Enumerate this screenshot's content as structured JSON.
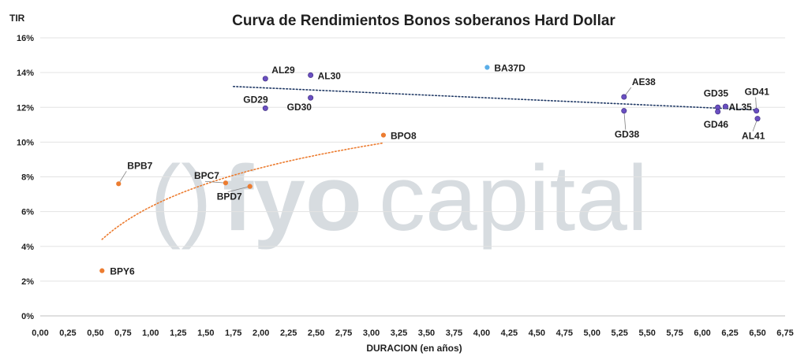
{
  "watermark": {
    "brand_bold": "fyo",
    "brand_light": "capital"
  },
  "chart_data": {
    "type": "scatter",
    "title": "Curva de Rendimientos Bonos soberanos Hard Dollar",
    "xlabel": "DURACION (en años)",
    "ylabel": "TIR",
    "xlim": [
      0,
      6.75
    ],
    "ylim": [
      0,
      16
    ],
    "x_ticks": [
      "0,00",
      "0,25",
      "0,50",
      "0,75",
      "1,00",
      "1,25",
      "1,50",
      "1,75",
      "2,00",
      "2,25",
      "2,50",
      "2,75",
      "3,00",
      "3,25",
      "3,50",
      "3,75",
      "4,00",
      "4,25",
      "4,50",
      "4,75",
      "5,00",
      "5,25",
      "5,50",
      "5,75",
      "6,00",
      "6,25",
      "6,50",
      "6,75"
    ],
    "y_ticks": [
      "0%",
      "2%",
      "4%",
      "6%",
      "8%",
      "10%",
      "12%",
      "14%",
      "16%"
    ],
    "grid": "horizontal",
    "colors": {
      "globales": "#6a4fc1",
      "bopreales": "#ec7c30",
      "ba37d": "#5aaee8",
      "trend_globales": "#1f3864",
      "trend_bopreales": "#ec7c30"
    },
    "series": [
      {
        "group": "globales",
        "points": [
          {
            "label": "AL29",
            "x": 2.04,
            "y": 13.65
          },
          {
            "label": "AL30",
            "x": 2.45,
            "y": 13.85
          },
          {
            "label": "GD29",
            "x": 2.04,
            "y": 11.95
          },
          {
            "label": "GD30",
            "x": 2.45,
            "y": 12.55
          },
          {
            "label": "AE38",
            "x": 5.29,
            "y": 12.6
          },
          {
            "label": "GD38",
            "x": 5.29,
            "y": 11.8
          },
          {
            "label": "GD35",
            "x": 6.14,
            "y": 12.0
          },
          {
            "label": "AL35",
            "x": 6.21,
            "y": 12.05
          },
          {
            "label": "GD46",
            "x": 6.14,
            "y": 11.75
          },
          {
            "label": "GD41",
            "x": 6.49,
            "y": 11.8
          },
          {
            "label": "AL41",
            "x": 6.5,
            "y": 11.35
          }
        ]
      },
      {
        "group": "bopreales",
        "points": [
          {
            "label": "BPB7",
            "x": 0.71,
            "y": 7.6
          },
          {
            "label": "BPC7",
            "x": 1.68,
            "y": 7.65
          },
          {
            "label": "BPD7",
            "x": 1.9,
            "y": 7.45
          },
          {
            "label": "BPO8",
            "x": 3.11,
            "y": 10.4
          },
          {
            "label": "BPY6",
            "x": 0.56,
            "y": 2.6
          }
        ]
      },
      {
        "group": "ba37d",
        "points": [
          {
            "label": "BA37D",
            "x": 4.05,
            "y": 14.3
          }
        ]
      }
    ],
    "trendlines": [
      {
        "group": "globales",
        "type": "linear",
        "x_range": [
          1.75,
          6.5
        ],
        "y_at_start": 13.2,
        "y_at_end": 11.85
      },
      {
        "group": "bopreales",
        "type": "logarithmic",
        "x_range": [
          0.56,
          3.11
        ],
        "y_at_start": 4.4,
        "y_at_end": 9.95
      }
    ]
  }
}
